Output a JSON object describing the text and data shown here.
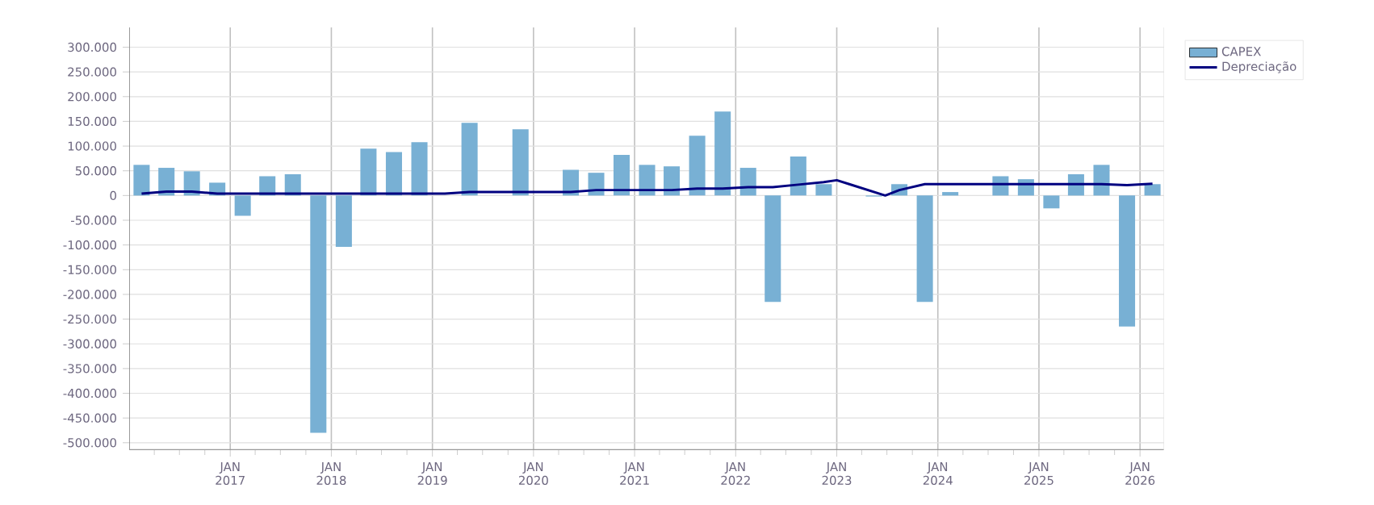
{
  "chart_data": {
    "type": "bar",
    "x": [
      "2016-02-15",
      "2016-05-15",
      "2016-08-15",
      "2016-11-15",
      "2017-02-15",
      "2017-05-15",
      "2017-08-15",
      "2017-11-15",
      "2018-02-15",
      "2018-05-15",
      "2018-08-15",
      "2018-11-15",
      "2019-02-15",
      "2019-05-15",
      "2019-08-15",
      "2019-11-15",
      "2020-02-15",
      "2020-05-15",
      "2020-08-15",
      "2020-11-15",
      "2021-02-15",
      "2021-05-15",
      "2021-08-15",
      "2021-11-15",
      "2022-02-15",
      "2022-05-15",
      "2022-08-15",
      "2022-11-15",
      "2023-02-15",
      "2023-05-15",
      "2023-08-15",
      "2023-11-15",
      "2024-02-15",
      "2024-05-15",
      "2024-08-15",
      "2024-11-15",
      "2025-02-15",
      "2025-05-15",
      "2025-08-15",
      "2025-11-15",
      "2026-02-15"
    ],
    "series": [
      {
        "name": "CAPEX",
        "color": "#78b0d4",
        "values": [
          62000,
          56000,
          49000,
          26000,
          -41000,
          39000,
          43000,
          -480000,
          -104000,
          95000,
          88000,
          108000,
          null,
          147000,
          null,
          134000,
          null,
          52000,
          46000,
          82000,
          62000,
          59000,
          121000,
          170000,
          56000,
          -215000,
          79000,
          23000,
          null,
          -2000,
          23000,
          -215000,
          7000,
          null,
          39000,
          33000,
          -26000,
          43000,
          62000,
          -265000,
          23000
        ]
      },
      {
        "name": "Depreciação",
        "type": "line",
        "color": "#000080",
        "x": [
          "2016-02-15",
          "2016-05-15",
          "2016-08-15",
          "2016-11-15",
          "2017-02-15",
          "2017-05-15",
          "2017-08-15",
          "2017-11-15",
          "2018-02-15",
          "2018-05-15",
          "2018-08-15",
          "2018-11-15",
          "2019-02-15",
          "2019-05-15",
          "2019-08-15",
          "2019-11-15",
          "2020-02-15",
          "2020-05-15",
          "2020-08-15",
          "2020-11-15",
          "2021-02-15",
          "2021-05-15",
          "2021-08-15",
          "2021-11-15",
          "2022-02-15",
          "2022-05-15",
          "2022-08-15",
          "2022-11-15",
          "2023-01-01",
          "2023-02-15",
          "2023-06-25",
          "2023-08-15",
          "2023-11-15",
          "2024-02-15",
          "2024-05-15",
          "2024-08-15",
          "2024-11-15",
          "2025-02-15",
          "2025-05-15",
          "2025-08-15",
          "2025-11-15",
          "2026-02-15"
        ],
        "values": [
          4000,
          8000,
          8000,
          4000,
          4000,
          4000,
          4000,
          4000,
          4000,
          4000,
          4000,
          4000,
          4000,
          7000,
          7000,
          7000,
          7000,
          7000,
          11000,
          11000,
          11000,
          11000,
          14000,
          14000,
          17000,
          17000,
          22000,
          27000,
          31000,
          23000,
          0,
          11000,
          23000,
          23000,
          23000,
          23000,
          23000,
          23000,
          23000,
          23000,
          21000,
          24000
        ]
      }
    ],
    "xlim": [
      "2016-01-01",
      "2026-03-29"
    ],
    "xticks": [
      {
        "value": "2016-04-01",
        "label": null
      },
      {
        "value": "2016-07-01",
        "label": null
      },
      {
        "value": "2016-10-01",
        "label": null
      },
      {
        "value": "2017-01-01",
        "label": "JAN 2017"
      },
      {
        "value": "2017-04-01",
        "label": null
      },
      {
        "value": "2017-07-01",
        "label": null
      },
      {
        "value": "2017-10-01",
        "label": null
      },
      {
        "value": "2018-01-01",
        "label": "JAN 2018"
      },
      {
        "value": "2018-04-01",
        "label": null
      },
      {
        "value": "2018-07-01",
        "label": null
      },
      {
        "value": "2018-10-01",
        "label": null
      },
      {
        "value": "2019-01-01",
        "label": "JAN 2019"
      },
      {
        "value": "2019-04-01",
        "label": null
      },
      {
        "value": "2019-07-01",
        "label": null
      },
      {
        "value": "2019-10-01",
        "label": null
      },
      {
        "value": "2020-01-01",
        "label": "JAN 2020"
      },
      {
        "value": "2020-04-01",
        "label": null
      },
      {
        "value": "2020-07-01",
        "label": null
      },
      {
        "value": "2020-10-01",
        "label": null
      },
      {
        "value": "2021-01-01",
        "label": "JAN 2021"
      },
      {
        "value": "2021-04-01",
        "label": null
      },
      {
        "value": "2021-07-01",
        "label": null
      },
      {
        "value": "2021-10-01",
        "label": null
      },
      {
        "value": "2022-01-01",
        "label": "JAN 2022"
      },
      {
        "value": "2022-04-01",
        "label": null
      },
      {
        "value": "2022-07-01",
        "label": null
      },
      {
        "value": "2022-10-01",
        "label": null
      },
      {
        "value": "2023-01-01",
        "label": "JAN 2023"
      },
      {
        "value": "2023-04-01",
        "label": null
      },
      {
        "value": "2023-07-01",
        "label": null
      },
      {
        "value": "2023-10-01",
        "label": null
      },
      {
        "value": "2024-01-01",
        "label": "JAN 2024"
      },
      {
        "value": "2024-04-01",
        "label": null
      },
      {
        "value": "2024-07-01",
        "label": null
      },
      {
        "value": "2024-10-01",
        "label": null
      },
      {
        "value": "2025-01-01",
        "label": "JAN 2025"
      },
      {
        "value": "2025-04-01",
        "label": null
      },
      {
        "value": "2025-07-01",
        "label": null
      },
      {
        "value": "2025-10-01",
        "label": null
      },
      {
        "value": "2026-01-01",
        "label": "JAN 2026"
      }
    ],
    "ylim": [
      -515000,
      340000
    ],
    "yticks": [
      {
        "value": -500000,
        "label": "-500.000"
      },
      {
        "value": -450000,
        "label": "-450.000"
      },
      {
        "value": -400000,
        "label": "-400.000"
      },
      {
        "value": -350000,
        "label": "-350.000"
      },
      {
        "value": -300000,
        "label": "-300.000"
      },
      {
        "value": -250000,
        "label": "-250.000"
      },
      {
        "value": -200000,
        "label": "-200.000"
      },
      {
        "value": -150000,
        "label": "-150.000"
      },
      {
        "value": -100000,
        "label": "-100.000"
      },
      {
        "value": -50000,
        "label": "-50.000"
      },
      0,
      {
        "value": 50000,
        "label": "50.000"
      },
      {
        "value": 100000,
        "label": "100.000"
      },
      {
        "value": 150000,
        "label": "150.000"
      },
      {
        "value": 200000,
        "label": "200.000"
      },
      {
        "value": 250000,
        "label": "250.000"
      },
      {
        "value": 300000,
        "label": "300.000"
      }
    ],
    "grid": true,
    "legend": "top right"
  }
}
